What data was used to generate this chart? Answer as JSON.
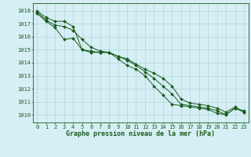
{
  "title": "Graphe pression niveau de la mer (hPa)",
  "bg_color": "#d6eff5",
  "grid_color": "#aacdd8",
  "line_color": "#1a5c1a",
  "xlim": [
    -0.5,
    23.5
  ],
  "ylim": [
    1009.4,
    1018.6
  ],
  "yticks": [
    1010,
    1011,
    1012,
    1013,
    1014,
    1015,
    1016,
    1017,
    1018
  ],
  "xticks": [
    0,
    1,
    2,
    3,
    4,
    5,
    6,
    7,
    8,
    9,
    10,
    11,
    12,
    13,
    14,
    15,
    16,
    17,
    18,
    19,
    20,
    21,
    22,
    23
  ],
  "series": [
    [
      1018.0,
      1017.5,
      1017.2,
      1017.2,
      1016.8,
      1015.0,
      1014.8,
      1014.8,
      1014.8,
      1014.3,
      1013.8,
      1013.5,
      1013.0,
      1012.2,
      1011.5,
      1010.8,
      1010.7,
      1010.6,
      1010.5,
      1010.4,
      1010.1,
      1010.0,
      1010.5,
      1010.2
    ],
    [
      1017.9,
      1017.3,
      1016.9,
      1016.8,
      1016.5,
      1015.8,
      1015.2,
      1014.9,
      1014.8,
      1014.5,
      1014.2,
      1013.8,
      1013.3,
      1012.8,
      1012.2,
      1011.6,
      1010.8,
      1010.7,
      1010.6,
      1010.5,
      1010.3,
      1010.0,
      1010.5,
      1010.3
    ],
    [
      1017.8,
      1017.2,
      1016.7,
      1015.8,
      1015.9,
      1015.0,
      1014.9,
      1014.8,
      1014.8,
      1014.5,
      1014.3,
      1013.9,
      1013.5,
      1013.2,
      1012.8,
      1012.2,
      1011.2,
      1010.9,
      1010.8,
      1010.7,
      1010.5,
      1010.2,
      1010.6,
      1010.2
    ]
  ],
  "tick_fontsize": 5.0,
  "label_fontsize": 6.0,
  "linewidth": 0.7,
  "markersize": 2.0
}
